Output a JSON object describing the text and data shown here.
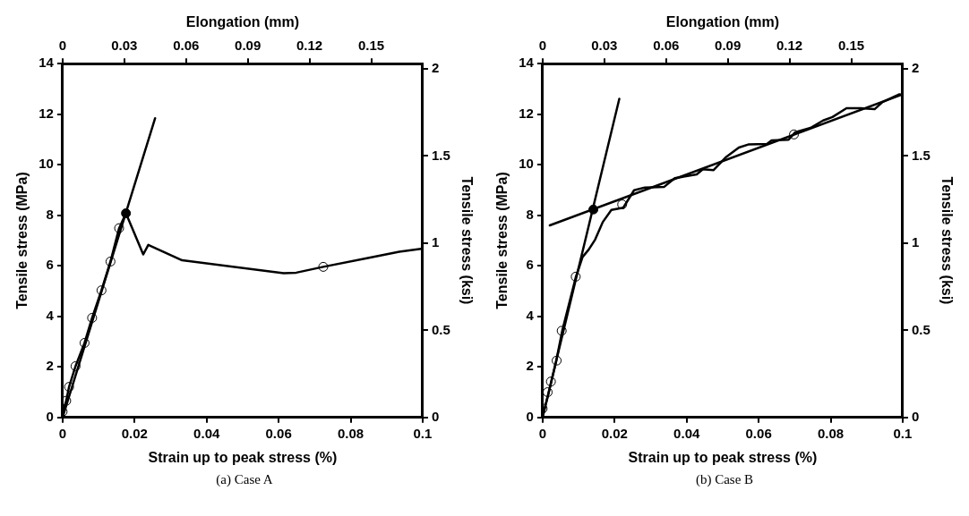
{
  "chart_data": [
    {
      "type": "line",
      "xlabel": "Strain up to peak stress (%)",
      "ylabel": "Tensile stress (MPa)",
      "y2label": "Tensile stress (ksi)",
      "x2label": "Elongation (mm)",
      "annotations": [
        "(a) Case A"
      ],
      "xlim": [
        0,
        0.1
      ],
      "xticks": [
        0,
        0.02,
        0.04,
        0.06,
        0.08,
        0.1
      ],
      "x2lim": [
        0,
        0.175
      ],
      "x2ticks": [
        0,
        0.03,
        0.06,
        0.09,
        0.12,
        0.15
      ],
      "ylim": [
        0,
        14
      ],
      "yticks": [
        0,
        2,
        4,
        6,
        8,
        10,
        12,
        14
      ],
      "y2lim": [
        0,
        2.03
      ],
      "y2ticks": [
        0,
        0.5,
        1,
        1.5,
        2
      ],
      "grid": false,
      "legend": false,
      "series": [
        {
          "type": "line",
          "color": "#000000",
          "x": [
            0,
            0.001,
            0.0018,
            0.0036,
            0.0061,
            0.0082,
            0.0108,
            0.0133,
            0.0157,
            0.0176,
            0.0224,
            0.0238,
            0.0332,
            0.0614,
            0.0649,
            0.0724,
            0.0848,
            0.0935,
            0.1
          ],
          "values": [
            0.17,
            0.66,
            1.21,
            2.03,
            2.95,
            3.94,
            5.03,
            6.17,
            7.49,
            8.08,
            6.45,
            6.83,
            6.22,
            5.71,
            5.73,
            5.96,
            6.31,
            6.56,
            6.68
          ]
        },
        {
          "type": "line",
          "color": "#000000",
          "x": [
            0,
            0.0257
          ],
          "values": [
            0,
            11.84
          ]
        },
        {
          "type": "scatter",
          "color": "#000000",
          "marker": "circle",
          "x": [
            0,
            0.001,
            0.0018,
            0.0036,
            0.0061,
            0.0082,
            0.0108,
            0.0133,
            0.0157,
            0.0724
          ],
          "values": [
            0.23,
            0.66,
            1.21,
            2.03,
            2.95,
            3.94,
            5.03,
            6.17,
            7.49,
            5.96
          ]
        },
        {
          "type": "scatter",
          "color": "#000000",
          "marker": "circle",
          "x": [
            0.0176
          ],
          "values": [
            8.08
          ]
        }
      ]
    },
    {
      "type": "line",
      "xlabel": "Strain up to peak stress (%)",
      "ylabel": "Tensile stress (MPa)",
      "y2label": "Tensile stress (ksi)",
      "x2label": "Elongation (mm)",
      "annotations": [
        "(b) Case B"
      ],
      "xlim": [
        0,
        0.1
      ],
      "xticks": [
        0,
        0.02,
        0.04,
        0.06,
        0.08,
        0.1
      ],
      "x2lim": [
        0,
        0.175
      ],
      "x2ticks": [
        0,
        0.03,
        0.06,
        0.09,
        0.12,
        0.15
      ],
      "ylim": [
        0,
        14
      ],
      "yticks": [
        0,
        2,
        4,
        6,
        8,
        10,
        12,
        14
      ],
      "y2lim": [
        0,
        2.03
      ],
      "y2ticks": [
        0,
        0.5,
        1,
        1.5,
        2
      ],
      "grid": false,
      "legend": false,
      "series": [
        {
          "type": "line",
          "color": "#000000",
          "x": [
            0,
            0.0016,
            0.0037,
            0.0055,
            0.0092,
            0.0111,
            0.0128,
            0.0146,
            0.0167,
            0.0191,
            0.0224,
            0.0254,
            0.0284,
            0.0337,
            0.0367,
            0.0428,
            0.0445,
            0.0475,
            0.051,
            0.0545,
            0.0571,
            0.0623,
            0.0636,
            0.0683,
            0.0701,
            0.0744,
            0.0779,
            0.0805,
            0.0844,
            0.0883,
            0.0922,
            0.0944,
            0.0991,
            0.1
          ],
          "values": [
            0.06,
            0.92,
            2.19,
            3.46,
            5.54,
            6.35,
            6.64,
            7.04,
            7.73,
            8.21,
            8.3,
            8.99,
            9.1,
            9.12,
            9.47,
            9.62,
            9.82,
            9.79,
            10.31,
            10.68,
            10.8,
            10.82,
            10.96,
            10.99,
            11.28,
            11.46,
            11.75,
            11.89,
            12.24,
            12.24,
            12.2,
            12.48,
            12.79,
            12.76
          ]
        },
        {
          "type": "line",
          "color": "#000000",
          "x": [
            0,
            0.0213
          ],
          "values": [
            0,
            12.61
          ]
        },
        {
          "type": "line",
          "color": "#000000",
          "x": [
            0.002,
            0.1
          ],
          "values": [
            7.6,
            12.79
          ]
        },
        {
          "type": "scatter",
          "color": "#000000",
          "marker": "circle",
          "x": [
            0,
            0.0014,
            0.0023,
            0.0039,
            0.0053,
            0.0092,
            0.0221,
            0.0698
          ],
          "values": [
            0.35,
            1.0,
            1.42,
            2.25,
            3.43,
            5.57,
            8.43,
            11.2
          ]
        },
        {
          "type": "scatter",
          "color": "#000000",
          "marker": "circle",
          "x": [
            0.0141
          ],
          "values": [
            8.23
          ]
        }
      ]
    }
  ]
}
